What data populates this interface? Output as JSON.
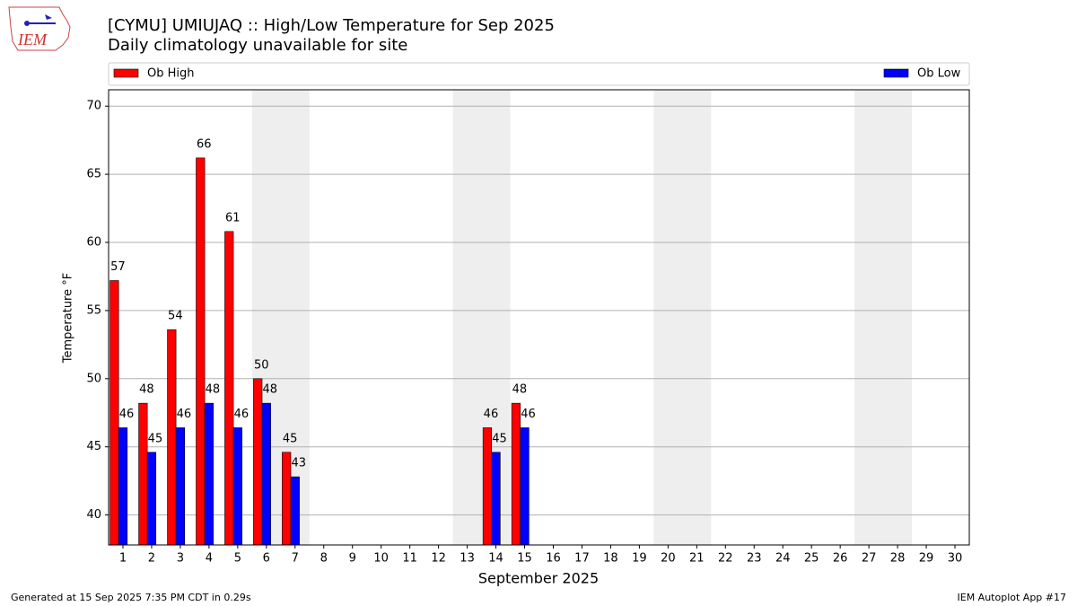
{
  "chart_data": {
    "type": "bar",
    "title": "[CYMU] UMIUJAQ :: High/Low Temperature for Sep 2025",
    "subtitle": "Daily climatology unavailable for site",
    "xlabel": "September 2025",
    "ylabel": "Temperature °F",
    "logo_text": "IEM",
    "footer_left": "Generated at 15 Sep 2025 7:35 PM CDT in 0.29s",
    "footer_right": "IEM Autoplot App #17",
    "x": [
      1,
      2,
      3,
      4,
      5,
      6,
      7,
      8,
      9,
      10,
      11,
      12,
      13,
      14,
      15,
      16,
      17,
      18,
      19,
      20,
      21,
      22,
      23,
      24,
      25,
      26,
      27,
      28,
      29,
      30
    ],
    "xlim": [
      0.5,
      30.5
    ],
    "xticks": [
      1,
      2,
      3,
      4,
      5,
      6,
      7,
      8,
      9,
      10,
      11,
      12,
      13,
      14,
      15,
      16,
      17,
      18,
      19,
      20,
      21,
      22,
      23,
      24,
      25,
      26,
      27,
      28,
      29,
      30
    ],
    "ylim": [
      37.8,
      71.2
    ],
    "yticks": [
      40,
      45,
      50,
      55,
      60,
      65,
      70
    ],
    "grid": true,
    "shaded": [
      [
        5.5,
        7.5
      ],
      [
        12.5,
        14.5
      ],
      [
        19.5,
        21.5
      ],
      [
        26.5,
        28.5
      ]
    ],
    "series": [
      {
        "name": "Ob High",
        "color": "#ff0000",
        "values": [
          57.2,
          48.2,
          53.6,
          66.2,
          60.8,
          50,
          44.6,
          null,
          null,
          null,
          null,
          null,
          null,
          46.4,
          48.2,
          null,
          null,
          null,
          null,
          null,
          null,
          null,
          null,
          null,
          null,
          null,
          null,
          null,
          null,
          null
        ],
        "value_labels": [
          "57",
          "48",
          "54",
          "66",
          "61",
          "50",
          "45",
          null,
          null,
          null,
          null,
          null,
          null,
          "46",
          "48",
          null,
          null,
          null,
          null,
          null,
          null,
          null,
          null,
          null,
          null,
          null,
          null,
          null,
          null,
          null
        ]
      },
      {
        "name": "Ob Low",
        "color": "#0000ff",
        "values": [
          46.4,
          44.6,
          46.4,
          48.2,
          46.4,
          48.2,
          42.8,
          null,
          null,
          null,
          null,
          null,
          null,
          44.6,
          46.4,
          null,
          null,
          null,
          null,
          null,
          null,
          null,
          null,
          null,
          null,
          null,
          null,
          null,
          null,
          null
        ],
        "value_labels": [
          "46",
          "45",
          "46",
          "48",
          "46",
          "48",
          "43",
          null,
          null,
          null,
          null,
          null,
          null,
          "45",
          "46",
          null,
          null,
          null,
          null,
          null,
          null,
          null,
          null,
          null,
          null,
          null,
          null,
          null,
          null,
          null
        ]
      }
    ]
  }
}
